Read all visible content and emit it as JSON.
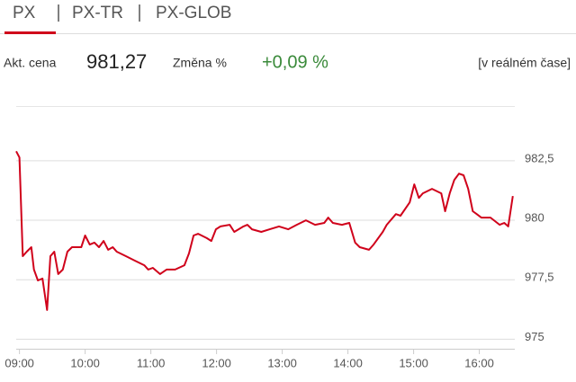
{
  "tabs": [
    "PX",
    "PX-TR",
    "PX-GLOB"
  ],
  "quote": {
    "price_label": "Akt. cena",
    "price": "981,27",
    "change_label": "Změna %",
    "change": "+0,09 %",
    "status": "[v reálném čase]"
  },
  "chart_data": {
    "type": "line",
    "x": [
      8.95,
      9.0,
      9.05,
      9.11,
      9.18,
      9.22,
      9.28,
      9.35,
      9.42,
      9.47,
      9.53,
      9.59,
      9.66,
      9.73,
      9.8,
      9.94,
      10.0,
      10.07,
      10.14,
      10.21,
      10.28,
      10.35,
      10.42,
      10.48,
      10.62,
      10.76,
      10.9,
      10.96,
      11.03,
      11.14,
      11.24,
      11.37,
      11.51,
      11.58,
      11.65,
      11.72,
      11.85,
      11.92,
      11.99,
      12.06,
      12.2,
      12.27,
      12.41,
      12.47,
      12.54,
      12.68,
      12.81,
      12.95,
      13.09,
      13.22,
      13.36,
      13.5,
      13.64,
      13.7,
      13.77,
      13.91,
      14.02,
      14.11,
      14.18,
      14.32,
      14.39,
      14.53,
      14.59,
      14.73,
      14.8,
      14.94,
      15.01,
      15.08,
      15.14,
      15.28,
      15.42,
      15.48,
      15.55,
      15.62,
      15.69,
      15.76,
      15.83,
      15.9,
      15.96,
      16.03,
      16.17,
      16.31,
      16.38,
      16.44,
      16.51
    ],
    "series": [
      {
        "name": "PX",
        "color": "#d0021b",
        "values": [
          982.9,
          982.64,
          978.49,
          978.68,
          978.87,
          977.93,
          977.47,
          977.55,
          976.23,
          978.49,
          978.68,
          977.74,
          977.93,
          978.68,
          978.87,
          978.87,
          979.36,
          978.98,
          979.06,
          978.87,
          979.13,
          978.76,
          978.87,
          978.68,
          978.49,
          978.3,
          978.11,
          977.93,
          978.0,
          977.74,
          977.93,
          977.93,
          978.11,
          978.61,
          979.36,
          979.43,
          979.25,
          979.13,
          979.62,
          979.74,
          979.81,
          979.51,
          979.74,
          979.81,
          979.62,
          979.51,
          979.62,
          979.74,
          979.62,
          979.81,
          980.0,
          979.81,
          979.89,
          980.11,
          979.89,
          979.81,
          979.89,
          979.06,
          978.87,
          978.76,
          978.98,
          979.51,
          979.81,
          980.26,
          980.19,
          980.75,
          981.51,
          980.94,
          981.13,
          981.32,
          981.13,
          980.38,
          981.13,
          981.7,
          981.96,
          981.89,
          981.32,
          980.38,
          980.26,
          980.11,
          980.11,
          979.81,
          979.89,
          979.74,
          981.02
        ]
      }
    ],
    "xlim": [
      8.95,
      16.54
    ],
    "xticks": [
      {
        "value": 9,
        "label": "09:00"
      },
      {
        "value": 10,
        "label": "10:00"
      },
      {
        "value": 11,
        "label": "11:00"
      },
      {
        "value": 12,
        "label": "12:00"
      },
      {
        "value": 13,
        "label": "13:00"
      },
      {
        "value": 14,
        "label": "14:00"
      },
      {
        "value": 15,
        "label": "15:00"
      },
      {
        "value": 16,
        "label": "16:00"
      }
    ],
    "ylim": [
      974.6,
      984.8
    ],
    "yticks": [
      975,
      {
        "value": 977.5,
        "label": "977,5"
      },
      980,
      {
        "value": 982.5,
        "label": "982,5"
      }
    ],
    "grid": true
  }
}
